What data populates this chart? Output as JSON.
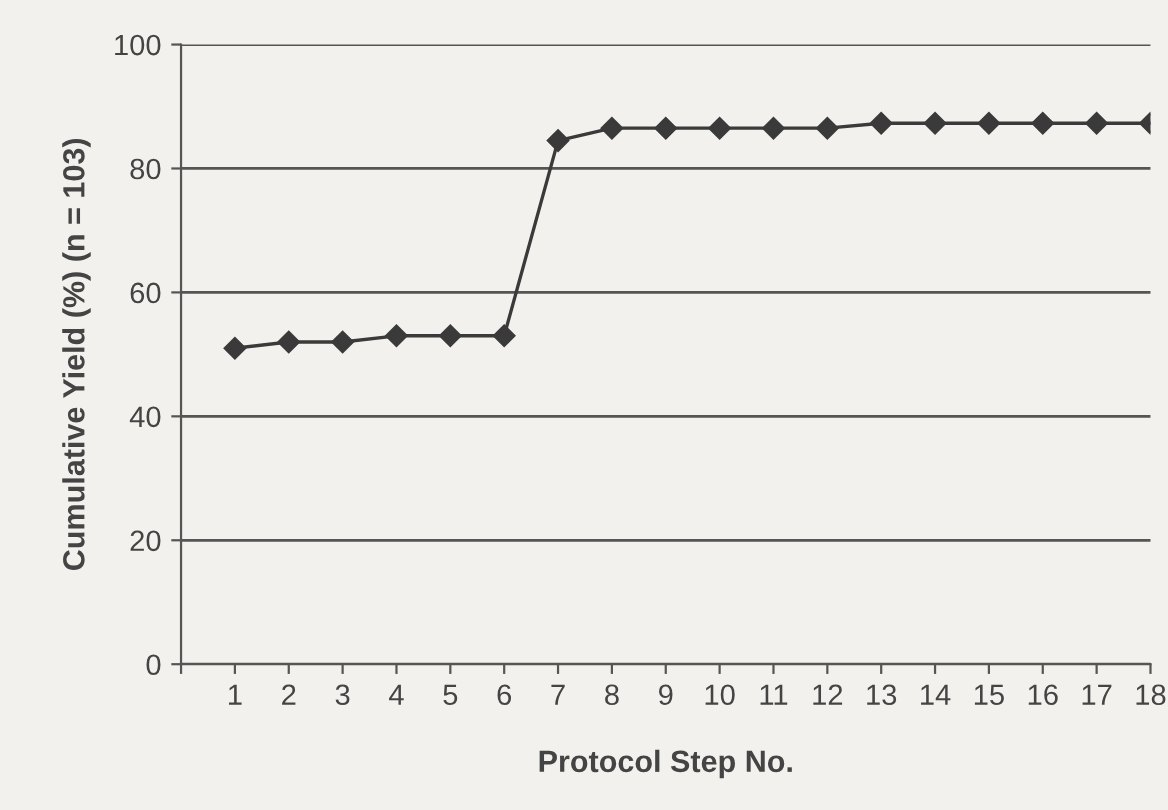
{
  "chart_data": {
    "type": "line",
    "xlabel": "Protocol Step No.",
    "ylabel": "Cumulative Yield (%) (n = 103)",
    "x": [
      1,
      2,
      3,
      4,
      5,
      6,
      7,
      8,
      9,
      10,
      11,
      12,
      13,
      14,
      15,
      16,
      17,
      18
    ],
    "series": [
      {
        "color": "#3a3a3a",
        "values": [
          51,
          52,
          52,
          53,
          53,
          53,
          84.5,
          86.5,
          86.5,
          86.5,
          86.5,
          86.5,
          87.3,
          87.3,
          87.3,
          87.3,
          87.3,
          87.3
        ]
      }
    ],
    "xlim": [
      0,
      18
    ],
    "xticks": [
      {
        "value": 0,
        "label": null
      },
      1,
      2,
      3,
      4,
      5,
      6,
      7,
      8,
      9,
      10,
      11,
      12,
      13,
      14,
      15,
      16,
      17,
      18
    ],
    "ylim": [
      0,
      100
    ],
    "yticks": [
      0,
      20,
      40,
      60,
      80,
      100
    ],
    "grid": "y",
    "marker": "diamond",
    "line_style": "solid",
    "legend": false
  }
}
